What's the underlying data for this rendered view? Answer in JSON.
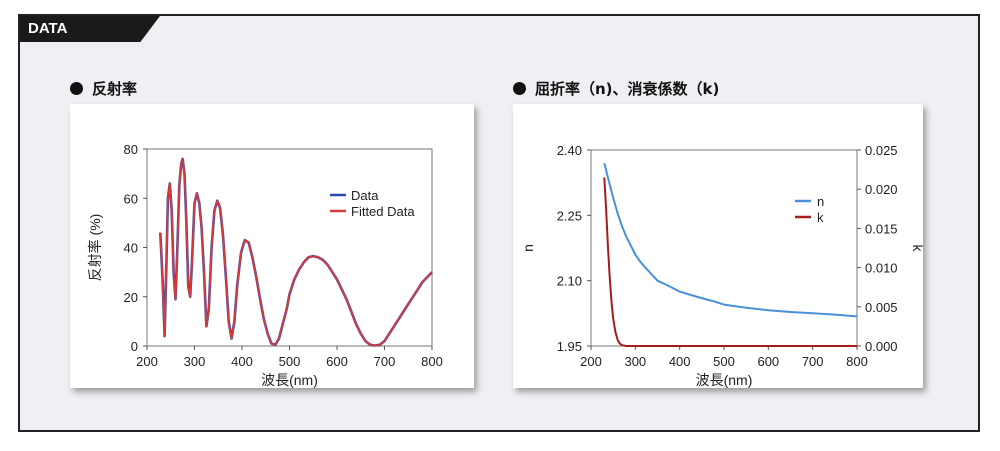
{
  "header": {
    "tab_label": "DATA"
  },
  "sections": {
    "left_title": "反射率",
    "right_title": "屈折率（n)、消衰係数（k)"
  },
  "colors": {
    "data": "#2b4aa8",
    "fitted": "#d83a3a",
    "n_line": "#4a90d9",
    "k_line": "#a51c1c"
  },
  "chart_data": [
    {
      "type": "line",
      "xlabel": "波長(nm)",
      "ylabel": "反射率 (%)",
      "xlim": [
        200,
        800
      ],
      "ylim": [
        0,
        80
      ],
      "xticks": [
        "200",
        "300",
        "400",
        "500",
        "600",
        "700",
        "800"
      ],
      "yticks": [
        "0",
        "20",
        "40",
        "60",
        "80"
      ],
      "legend": "top-right",
      "series": [
        {
          "name": "Data",
          "x": [
            228,
            233,
            237,
            241,
            244,
            248,
            252,
            256,
            260,
            264,
            268,
            272,
            275,
            279,
            283,
            287,
            291,
            295,
            300,
            305,
            310,
            315,
            320,
            325,
            330,
            336,
            342,
            348,
            354,
            360,
            366,
            372,
            378,
            384,
            390,
            398,
            406,
            414,
            422,
            430,
            438,
            446,
            454,
            462,
            470,
            478,
            486,
            494,
            500,
            510,
            520,
            530,
            540,
            550,
            560,
            570,
            580,
            590,
            600,
            610,
            620,
            630,
            640,
            650,
            660,
            670,
            680,
            690,
            700,
            710,
            720,
            730,
            740,
            750,
            760,
            770,
            780,
            790,
            800
          ],
          "y": [
            46,
            26,
            4,
            35,
            60,
            66,
            55,
            30,
            19,
            40,
            65,
            74,
            76,
            70,
            50,
            24,
            20,
            35,
            58,
            62,
            58,
            48,
            30,
            8,
            15,
            40,
            55,
            59,
            56,
            45,
            28,
            10,
            3,
            10,
            25,
            38,
            43,
            42,
            36,
            28,
            19,
            11,
            5,
            1,
            0.5,
            3,
            9,
            15,
            21,
            27,
            31,
            34,
            36,
            36.5,
            36,
            35,
            33,
            30,
            27,
            23,
            19,
            14,
            9,
            5,
            2,
            0.5,
            0.2,
            0.5,
            2,
            5,
            8,
            11,
            14,
            17,
            20,
            23,
            26,
            28,
            30
          ]
        },
        {
          "name": "Fitted Data",
          "x": [
            228,
            233,
            237,
            241,
            244,
            248,
            252,
            256,
            260,
            264,
            268,
            272,
            275,
            279,
            283,
            287,
            291,
            295,
            300,
            305,
            310,
            315,
            320,
            325,
            330,
            336,
            342,
            348,
            354,
            360,
            366,
            372,
            378,
            384,
            390,
            398,
            406,
            414,
            422,
            430,
            438,
            446,
            454,
            462,
            470,
            478,
            486,
            494,
            500,
            510,
            520,
            530,
            540,
            550,
            560,
            570,
            580,
            590,
            600,
            610,
            620,
            630,
            640,
            650,
            660,
            670,
            680,
            690,
            700,
            710,
            720,
            730,
            740,
            750,
            760,
            770,
            780,
            790,
            800
          ],
          "y": [
            46,
            26,
            4,
            35,
            60,
            66,
            55,
            30,
            19,
            40,
            65,
            74,
            76,
            70,
            50,
            24,
            20,
            35,
            58,
            62,
            58,
            48,
            30,
            8,
            15,
            40,
            55,
            59,
            56,
            45,
            28,
            10,
            3,
            10,
            25,
            38,
            43,
            42,
            36,
            28,
            19,
            11,
            5,
            1,
            0.5,
            3,
            9,
            15,
            21,
            27,
            31,
            34,
            36,
            36.5,
            36,
            35,
            33,
            30,
            27,
            23,
            19,
            14,
            9,
            5,
            2,
            0.5,
            0.2,
            0.5,
            2,
            5,
            8,
            11,
            14,
            17,
            20,
            23,
            26,
            28,
            30
          ]
        }
      ]
    },
    {
      "type": "line",
      "xlabel": "波長(nm)",
      "ylabel": "n",
      "y2label": "k",
      "xlim": [
        200,
        800
      ],
      "ylim": [
        1.95,
        2.4
      ],
      "y2lim": [
        0,
        0.025
      ],
      "xticks": [
        "200",
        "300",
        "400",
        "500",
        "600",
        "700",
        "800"
      ],
      "yticks": [
        "1.95",
        "2.10",
        "2.25",
        "2.40"
      ],
      "y2ticks": [
        "0.000",
        "0.005",
        "0.010",
        "0.015",
        "0.020",
        "0.025"
      ],
      "legend": "top-right",
      "series": [
        {
          "name": "n",
          "axis": "left",
          "x": [
            230,
            240,
            250,
            260,
            270,
            280,
            290,
            300,
            310,
            320,
            330,
            340,
            350,
            375,
            400,
            425,
            450,
            475,
            500,
            550,
            600,
            650,
            700,
            750,
            800
          ],
          "y": [
            2.37,
            2.33,
            2.29,
            2.255,
            2.225,
            2.2,
            2.18,
            2.16,
            2.145,
            2.133,
            2.122,
            2.111,
            2.1,
            2.088,
            2.075,
            2.067,
            2.06,
            2.053,
            2.045,
            2.038,
            2.032,
            2.028,
            2.025,
            2.022,
            2.018
          ]
        },
        {
          "name": "k",
          "axis": "right",
          "x": [
            230,
            234,
            238,
            242,
            246,
            250,
            255,
            260,
            265,
            270,
            280,
            290,
            300,
            400,
            500,
            600,
            700,
            800
          ],
          "y": [
            0.0215,
            0.0175,
            0.013,
            0.009,
            0.0058,
            0.0035,
            0.0018,
            0.0008,
            0.0003,
            0.0001,
            0,
            0,
            0,
            0,
            0,
            0,
            0,
            0
          ]
        }
      ]
    }
  ]
}
